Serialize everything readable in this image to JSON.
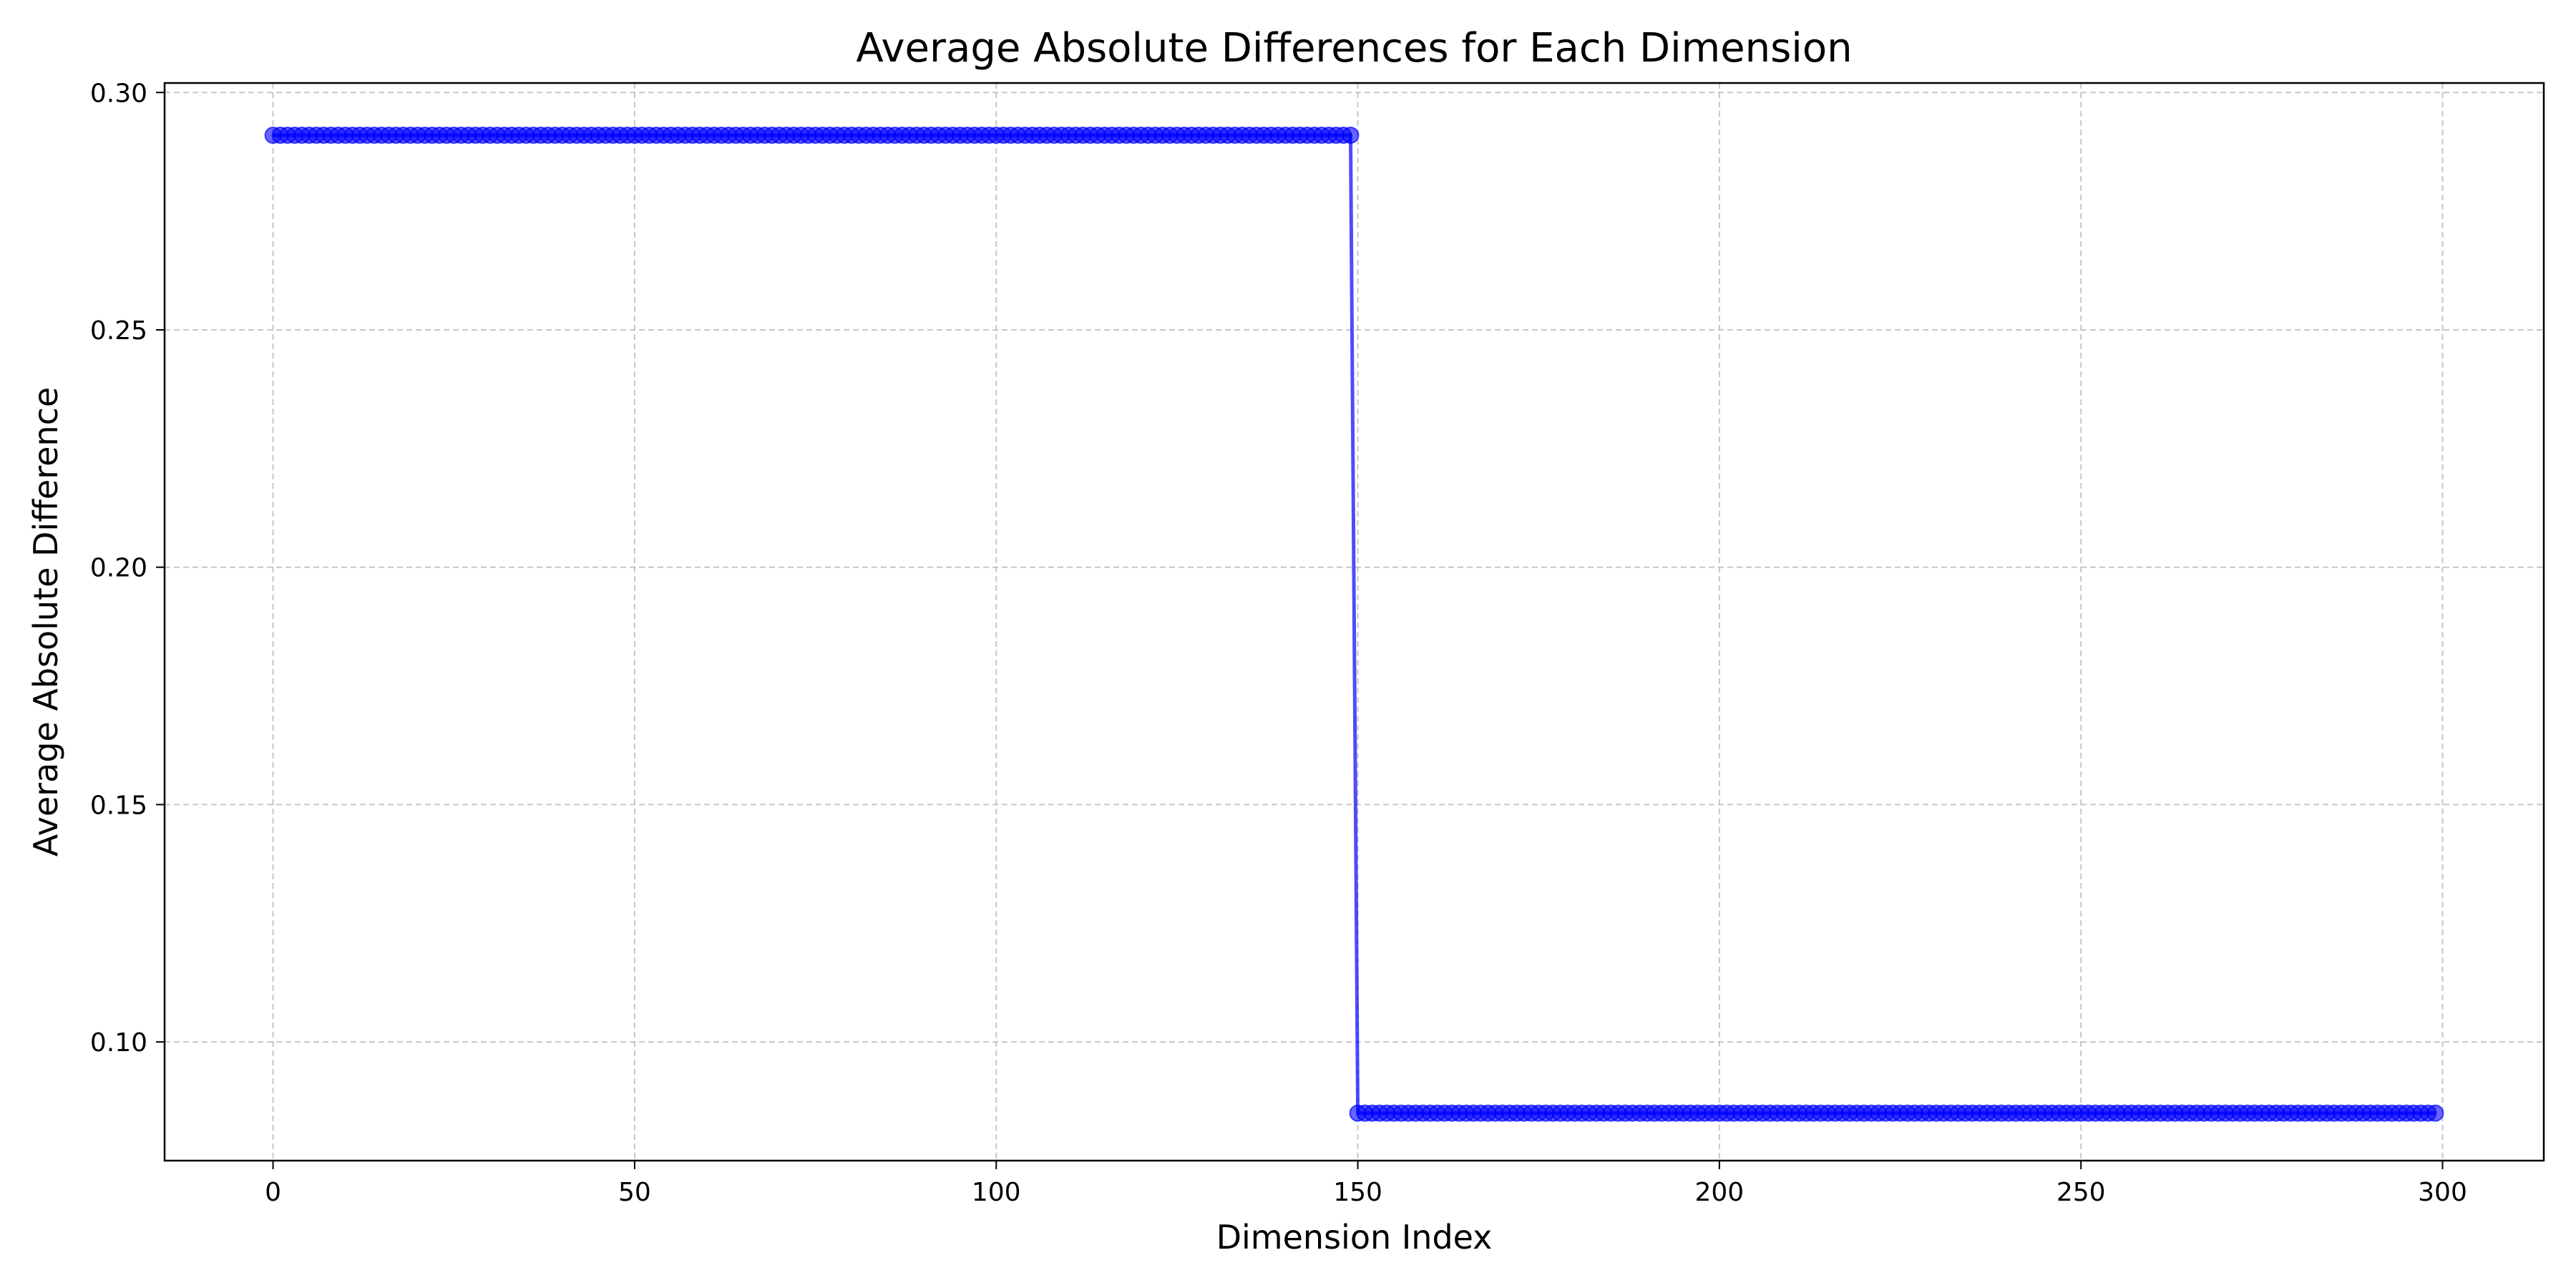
{
  "chart_data": {
    "type": "line",
    "title": "Average Absolute Differences for Each Dimension",
    "xlabel": "Dimension Index",
    "ylabel": "Average Absolute Difference",
    "xlim": [
      -15,
      314
    ],
    "ylim": [
      0.075,
      0.302
    ],
    "xticks": [
      0,
      50,
      100,
      150,
      200,
      250,
      300
    ],
    "xtick_labels": [
      "0",
      "50",
      "100",
      "150",
      "200",
      "250",
      "300"
    ],
    "yticks": [
      0.1,
      0.15,
      0.2,
      0.25,
      0.3
    ],
    "ytick_labels": [
      "0.10",
      "0.15",
      "0.20",
      "0.25",
      "0.30"
    ],
    "grid": true,
    "series": [
      {
        "color": "#0000ff",
        "marker": "circle",
        "segments": [
          {
            "x_start": 0,
            "x_end": 149,
            "y": 0.291
          },
          {
            "x_start": 150,
            "x_end": 299,
            "y": 0.085
          }
        ]
      }
    ]
  }
}
